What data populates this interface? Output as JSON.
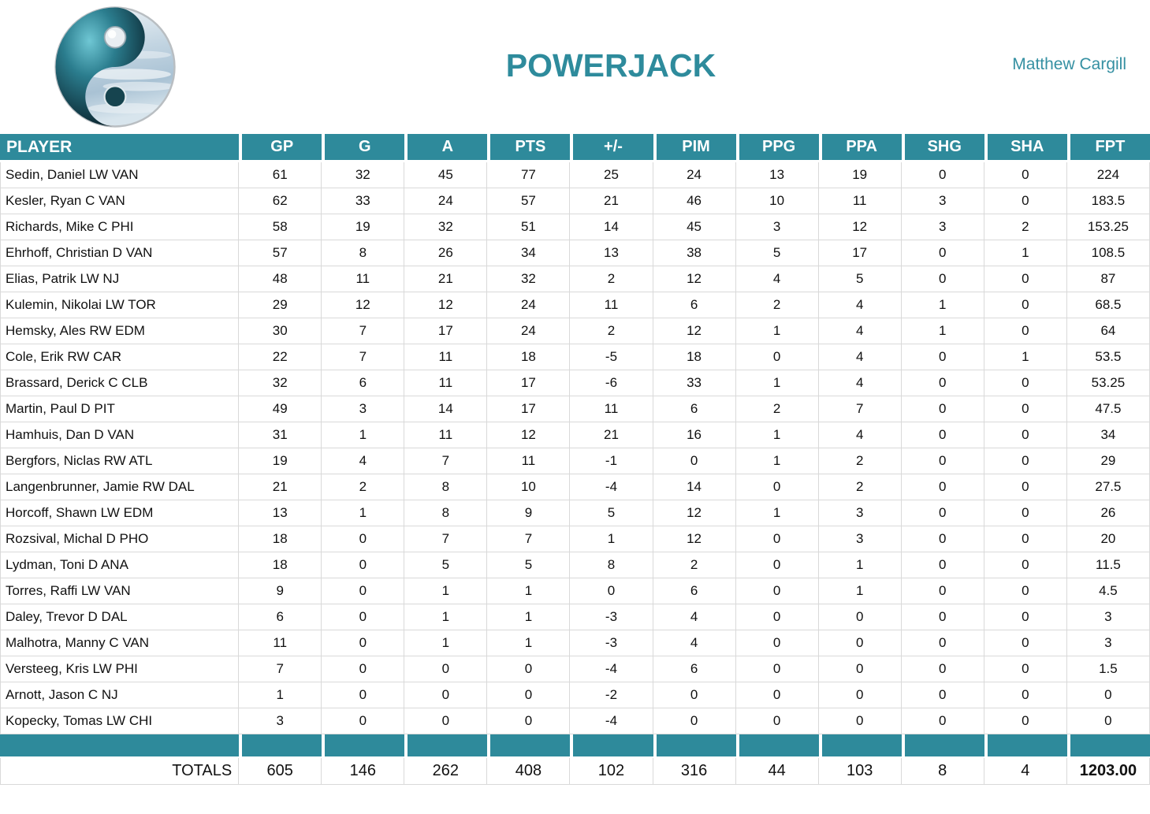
{
  "header": {
    "title": "POWERJACK",
    "owner": "Matthew Cargill",
    "logo_icon": "yin-yang-logo"
  },
  "colors": {
    "accent_teal": "#2E8A9B",
    "title_teal": "#2E8B9C",
    "gridline": "#D9D9D9",
    "text": "#111111"
  },
  "table": {
    "columns": [
      "PLAYER",
      "GP",
      "G",
      "A",
      "PTS",
      "+/-",
      "PIM",
      "PPG",
      "PPA",
      "SHG",
      "SHA",
      "FPT"
    ],
    "players": [
      {
        "name": "Sedin, Daniel LW VAN",
        "stats": [
          61,
          32,
          45,
          77,
          25,
          24,
          13,
          19,
          0,
          0,
          224
        ]
      },
      {
        "name": "Kesler, Ryan C VAN",
        "stats": [
          62,
          33,
          24,
          57,
          21,
          46,
          10,
          11,
          3,
          0,
          183.5
        ]
      },
      {
        "name": "Richards, Mike C PHI",
        "stats": [
          58,
          19,
          32,
          51,
          14,
          45,
          3,
          12,
          3,
          2,
          153.25
        ]
      },
      {
        "name": "Ehrhoff, Christian D VAN",
        "stats": [
          57,
          8,
          26,
          34,
          13,
          38,
          5,
          17,
          0,
          1,
          108.5
        ]
      },
      {
        "name": "Elias, Patrik LW NJ",
        "stats": [
          48,
          11,
          21,
          32,
          2,
          12,
          4,
          5,
          0,
          0,
          87
        ]
      },
      {
        "name": "Kulemin, Nikolai LW TOR",
        "stats": [
          29,
          12,
          12,
          24,
          11,
          6,
          2,
          4,
          1,
          0,
          68.5
        ]
      },
      {
        "name": "Hemsky, Ales RW EDM",
        "stats": [
          30,
          7,
          17,
          24,
          2,
          12,
          1,
          4,
          1,
          0,
          64
        ]
      },
      {
        "name": "Cole, Erik RW CAR",
        "stats": [
          22,
          7,
          11,
          18,
          -5,
          18,
          0,
          4,
          0,
          1,
          53.5
        ]
      },
      {
        "name": "Brassard, Derick C CLB",
        "stats": [
          32,
          6,
          11,
          17,
          -6,
          33,
          1,
          4,
          0,
          0,
          53.25
        ]
      },
      {
        "name": "Martin, Paul D PIT",
        "stats": [
          49,
          3,
          14,
          17,
          11,
          6,
          2,
          7,
          0,
          0,
          47.5
        ]
      },
      {
        "name": "Hamhuis, Dan D VAN",
        "stats": [
          31,
          1,
          11,
          12,
          21,
          16,
          1,
          4,
          0,
          0,
          34
        ]
      },
      {
        "name": "Bergfors, Niclas RW ATL",
        "stats": [
          19,
          4,
          7,
          11,
          -1,
          0,
          1,
          2,
          0,
          0,
          29
        ]
      },
      {
        "name": "Langenbrunner, Jamie RW DAL",
        "stats": [
          21,
          2,
          8,
          10,
          -4,
          14,
          0,
          2,
          0,
          0,
          27.5
        ]
      },
      {
        "name": "Horcoff, Shawn LW EDM",
        "stats": [
          13,
          1,
          8,
          9,
          5,
          12,
          1,
          3,
          0,
          0,
          26
        ]
      },
      {
        "name": "Rozsival, Michal D PHO",
        "stats": [
          18,
          0,
          7,
          7,
          1,
          12,
          0,
          3,
          0,
          0,
          20
        ]
      },
      {
        "name": "Lydman, Toni D ANA",
        "stats": [
          18,
          0,
          5,
          5,
          8,
          2,
          0,
          1,
          0,
          0,
          11.5
        ]
      },
      {
        "name": "Torres, Raffi LW VAN",
        "stats": [
          9,
          0,
          1,
          1,
          0,
          6,
          0,
          1,
          0,
          0,
          4.5
        ]
      },
      {
        "name": "Daley, Trevor D DAL",
        "stats": [
          6,
          0,
          1,
          1,
          -3,
          4,
          0,
          0,
          0,
          0,
          3
        ]
      },
      {
        "name": "Malhotra, Manny C VAN",
        "stats": [
          11,
          0,
          1,
          1,
          -3,
          4,
          0,
          0,
          0,
          0,
          3
        ]
      },
      {
        "name": "Versteeg, Kris LW PHI",
        "stats": [
          7,
          0,
          0,
          0,
          -4,
          6,
          0,
          0,
          0,
          0,
          1.5
        ]
      },
      {
        "name": "Arnott, Jason C NJ",
        "stats": [
          1,
          0,
          0,
          0,
          -2,
          0,
          0,
          0,
          0,
          0,
          0
        ]
      },
      {
        "name": "Kopecky, Tomas LW CHI",
        "stats": [
          3,
          0,
          0,
          0,
          -4,
          0,
          0,
          0,
          0,
          0,
          0
        ]
      }
    ],
    "totals": {
      "label": "TOTALS",
      "values": [
        605,
        146,
        262,
        408,
        102,
        316,
        44,
        103,
        8,
        4,
        "1203.00"
      ]
    }
  }
}
